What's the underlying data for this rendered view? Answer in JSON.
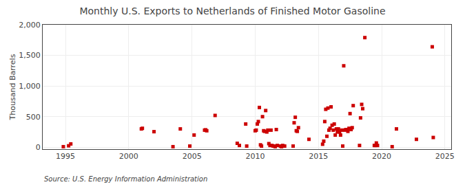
{
  "chart_data": {
    "type": "scatter",
    "title": "Monthly U.S. Exports to Netherlands of Finished Motor Gasoline",
    "ylabel": "Thousand Barrels",
    "annotation": "Source: U.S. Energy Information Administration",
    "color": "#cc0000",
    "marker": "square",
    "grid": true,
    "xlim": [
      1993.2,
      2025.5
    ],
    "ylim": [
      -30,
      2000
    ],
    "xticks": [
      1995,
      2000,
      2005,
      2010,
      2015,
      2020,
      2025
    ],
    "yticks": [
      0,
      500,
      {
        "value": 1000,
        "label": "1,000"
      },
      {
        "value": 1500,
        "label": "1,500"
      },
      {
        "value": 2000,
        "label": "2,000"
      }
    ],
    "x": [
      1994.83,
      1995.25,
      1995.42,
      2001.0,
      2001.08,
      2002.0,
      2003.5,
      2004.08,
      2004.83,
      2005.17,
      2006.0,
      2006.08,
      2006.17,
      2006.83,
      2008.58,
      2008.75,
      2009.25,
      2009.33,
      2010.0,
      2010.08,
      2010.17,
      2010.25,
      2010.33,
      2010.42,
      2010.5,
      2010.58,
      2010.67,
      2010.75,
      2010.83,
      2010.92,
      2011.0,
      2011.08,
      2011.17,
      2011.25,
      2011.33,
      2011.42,
      2011.5,
      2011.58,
      2011.67,
      2011.75,
      2012.0,
      2012.08,
      2012.17,
      2012.25,
      2012.33,
      2013.0,
      2013.08,
      2013.17,
      2013.25,
      2013.33,
      2013.42,
      2014.25,
      2015.33,
      2015.42,
      2015.5,
      2015.58,
      2015.67,
      2015.75,
      2015.83,
      2015.92,
      2016.0,
      2016.08,
      2016.17,
      2016.25,
      2016.33,
      2016.42,
      2016.5,
      2016.58,
      2016.67,
      2016.75,
      2016.83,
      2016.92,
      2017.0,
      2017.08,
      2017.17,
      2017.25,
      2017.33,
      2017.42,
      2017.5,
      2017.58,
      2017.67,
      2017.75,
      2018.25,
      2018.33,
      2018.42,
      2018.5,
      2018.67,
      2019.42,
      2019.5,
      2019.58,
      2019.67,
      2020.83,
      2021.17,
      2022.75,
      2024.0,
      2024.08
    ],
    "values": [
      10,
      25,
      55,
      300,
      310,
      255,
      10,
      300,
      20,
      200,
      280,
      285,
      270,
      520,
      65,
      30,
      380,
      20,
      270,
      280,
      380,
      420,
      650,
      40,
      20,
      500,
      270,
      260,
      600,
      250,
      280,
      60,
      30,
      280,
      30,
      20,
      20,
      10,
      290,
      30,
      20,
      10,
      30,
      20,
      20,
      20,
      400,
      490,
      270,
      260,
      320,
      130,
      50,
      100,
      420,
      620,
      180,
      640,
      280,
      310,
      660,
      360,
      280,
      380,
      200,
      300,
      250,
      300,
      250,
      200,
      280,
      20,
      1330,
      280,
      290,
      290,
      260,
      310,
      550,
      290,
      320,
      680,
      30,
      480,
      700,
      630,
      1790,
      30,
      30,
      70,
      30,
      10,
      300,
      130,
      1640,
      160
    ]
  }
}
